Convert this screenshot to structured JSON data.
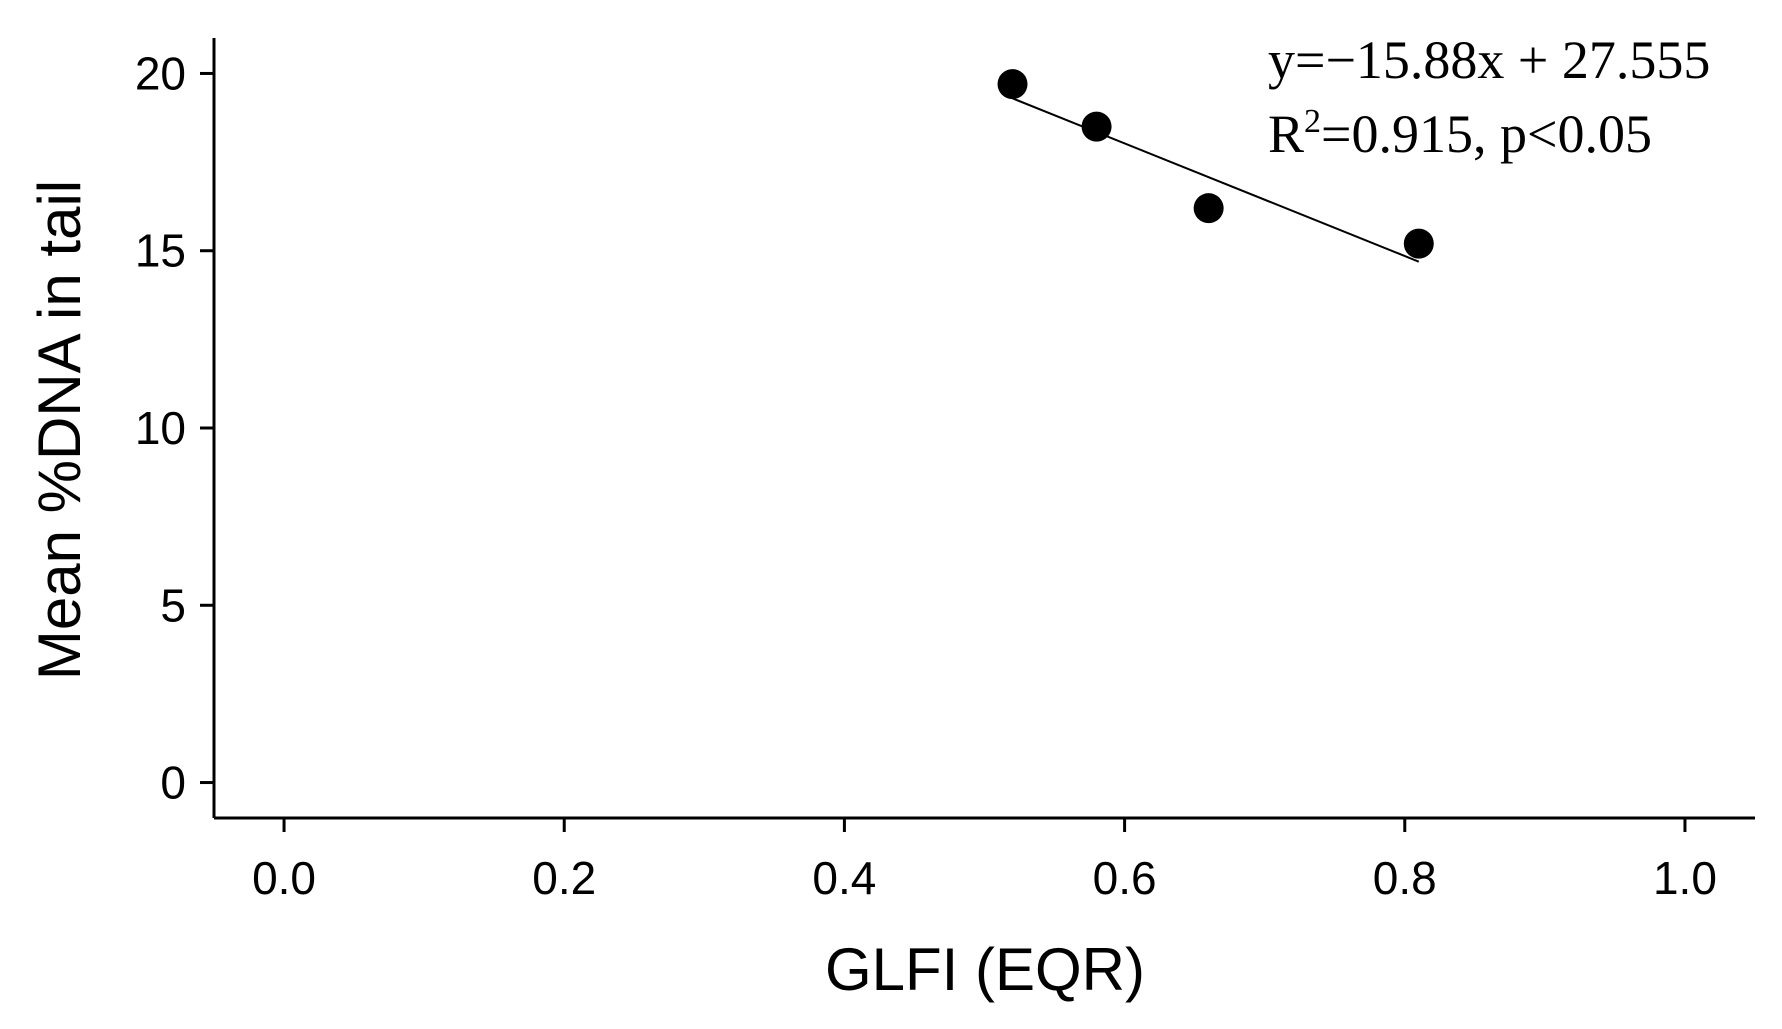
{
  "chart_data": {
    "type": "scatter",
    "title": "",
    "xlabel": "GLFI (EQR)",
    "ylabel": "Mean %DNA in tail",
    "xlim": [
      -0.05,
      1.05
    ],
    "ylim": [
      -1,
      21
    ],
    "x_ticks": [
      0.0,
      0.2,
      0.4,
      0.6,
      0.8,
      1.0
    ],
    "x_tick_labels": [
      "0.0",
      "0.2",
      "0.4",
      "0.6",
      "0.8",
      "1.0"
    ],
    "y_ticks": [
      0,
      5,
      10,
      15,
      20
    ],
    "y_tick_labels": [
      "0",
      "5",
      "10",
      "15",
      "20"
    ],
    "grid": false,
    "legend": "none",
    "series": [
      {
        "x": [
          0.52,
          0.58,
          0.66,
          0.81
        ],
        "y": [
          19.7,
          18.5,
          16.2,
          15.2
        ],
        "color": "#000000"
      }
    ],
    "trendline": {
      "slope": -15.88,
      "intercept": 27.555,
      "x_range": [
        0.52,
        0.81
      ],
      "color": "#000000"
    },
    "annotations": {
      "equation": "y=−15.88x + 27.555",
      "r2_prefix": "R",
      "r2_sup": "2",
      "r2_rest": "=0.915, p<0.05"
    }
  }
}
